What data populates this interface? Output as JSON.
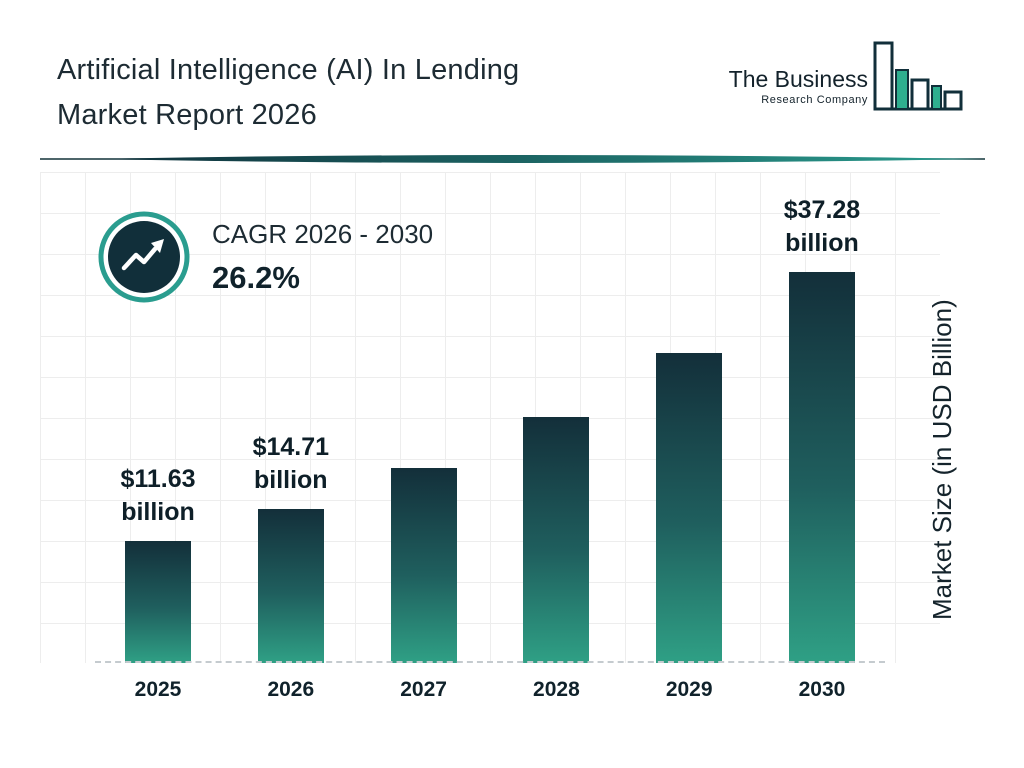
{
  "header": {
    "title_line1": "Artificial Intelligence (AI) In Lending",
    "title_line2": "Market Report 2026",
    "logo_line1": "The Business",
    "logo_line2": "Research Company"
  },
  "cagr": {
    "label": "CAGR 2026 - 2030",
    "value": "26.2%"
  },
  "chart_data": {
    "type": "bar",
    "title": "Artificial Intelligence (AI) In Lending Market Report 2026",
    "xlabel": "",
    "ylabel": "Market Size (in USD Billion)",
    "ylim": [
      0,
      40
    ],
    "grid": true,
    "legend": false,
    "categories": [
      "2025",
      "2026",
      "2027",
      "2028",
      "2029",
      "2030"
    ],
    "values": [
      11.63,
      14.71,
      18.56,
      23.43,
      29.57,
      37.28
    ],
    "labels": [
      {
        "amount": "$11.63",
        "unit": "billion"
      },
      {
        "amount": "$14.71",
        "unit": "billion"
      },
      null,
      null,
      null,
      {
        "amount": "$37.28",
        "unit": "billion"
      }
    ],
    "colors": {
      "bar_gradient_top": "#132f3a",
      "bar_gradient_bottom": "#2fa085",
      "accent_teal": "#2a9d8f",
      "dark_navy": "#112f3a",
      "grid": "#ededed"
    }
  }
}
